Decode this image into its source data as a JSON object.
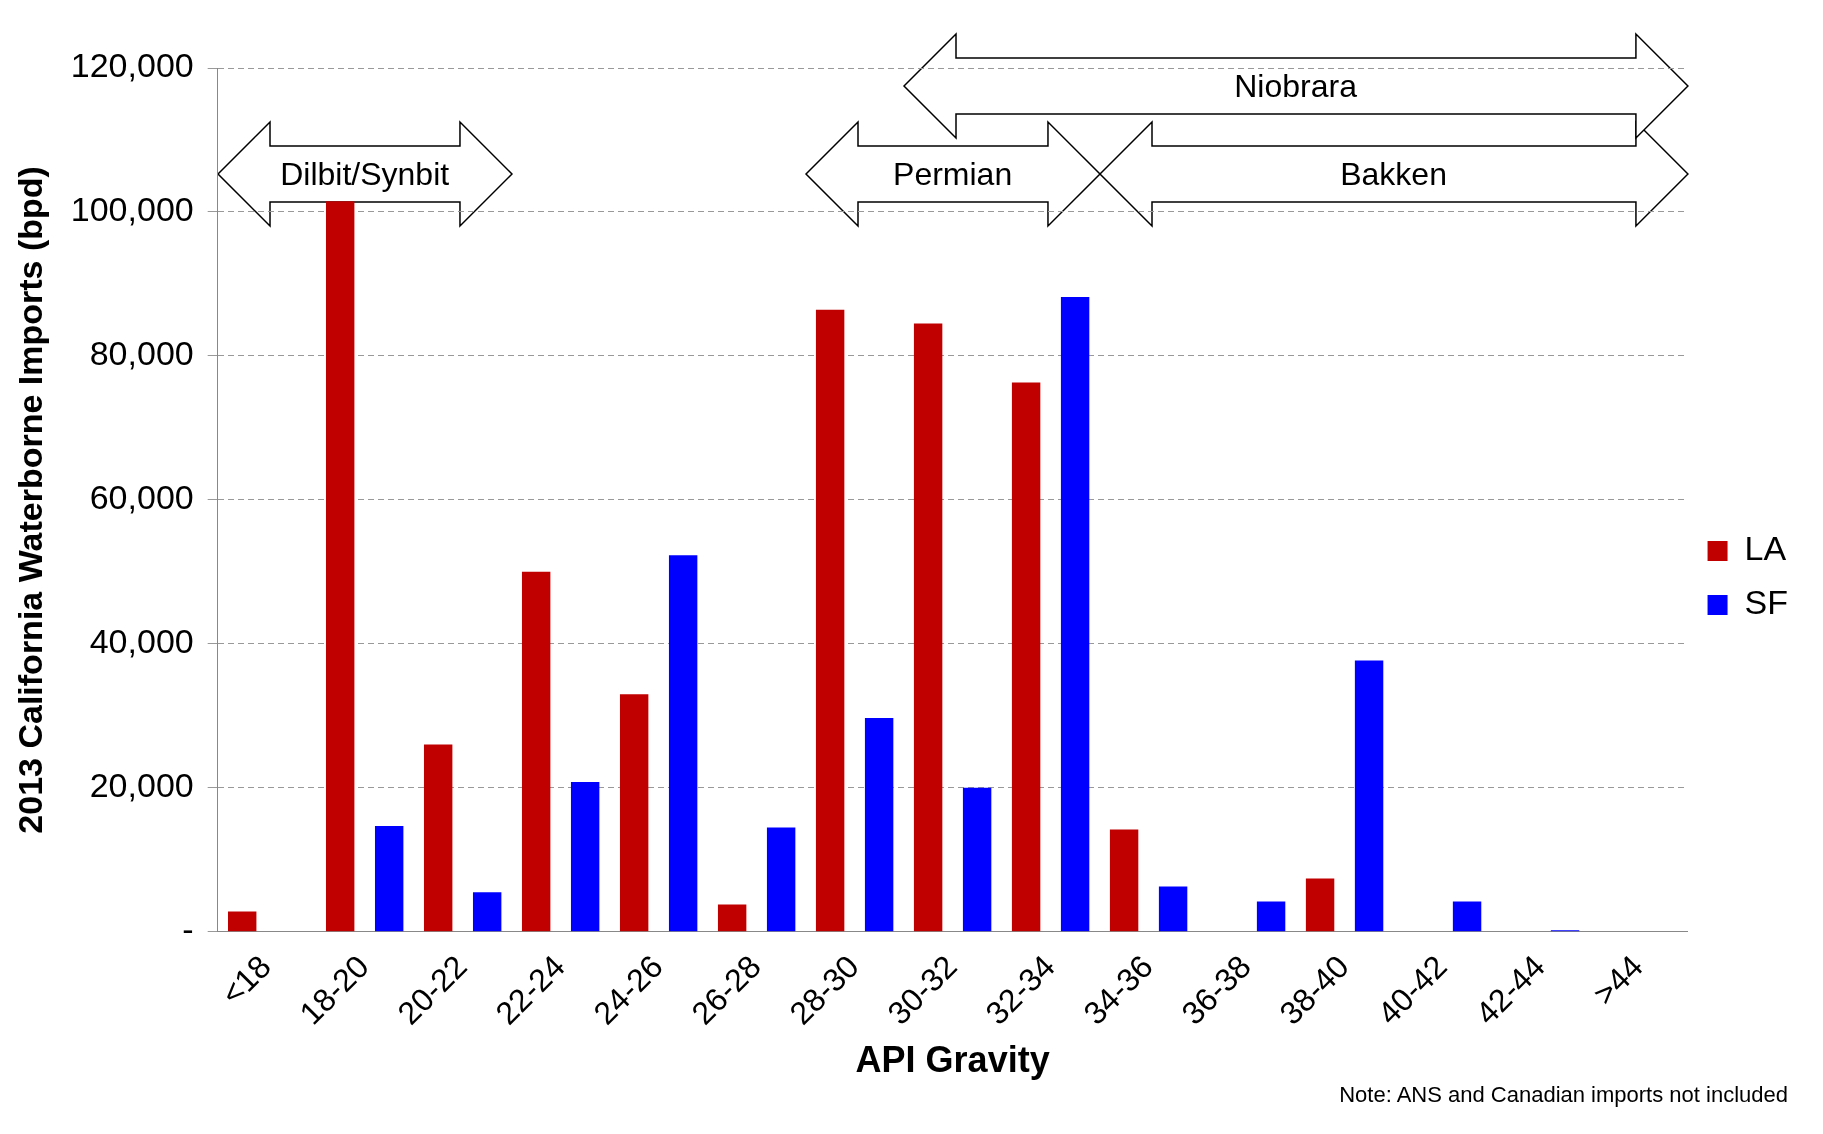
{
  "chart_data": {
    "type": "bar",
    "xlabel": "API Gravity",
    "ylabel": "2013 California Waterborne Imports (bpd)",
    "categories": [
      "<18",
      "18-20",
      "20-22",
      "22-24",
      "24-26",
      "26-28",
      "28-30",
      "30-32",
      "32-34",
      "34-36",
      "36-38",
      "38-40",
      "40-42",
      "42-44",
      ">44"
    ],
    "series": [
      {
        "name": "LA",
        "color": "#c00000",
        "values": [
          2800,
          101500,
          26000,
          50000,
          33000,
          3800,
          86400,
          84500,
          76300,
          14200,
          0,
          7400,
          0,
          0,
          0
        ]
      },
      {
        "name": "SF",
        "color": "#0000ff",
        "values": [
          0,
          14700,
          5500,
          20800,
          52300,
          14500,
          29700,
          20000,
          88200,
          6300,
          4200,
          37700,
          4200,
          200,
          0
        ]
      }
    ],
    "ylim": [
      0,
      120000
    ],
    "yticks": [
      {
        "value": 0,
        "label": "-"
      },
      {
        "value": 20000,
        "label": "20,000"
      },
      {
        "value": 40000,
        "label": "40,000"
      },
      {
        "value": 60000,
        "label": "60,000"
      },
      {
        "value": 80000,
        "label": "80,000"
      },
      {
        "value": 100000,
        "label": "100,000"
      },
      {
        "value": 120000,
        "label": "120,000"
      }
    ],
    "grid": "y",
    "legend": "right",
    "annotations": [
      "Dilbit/Synbit",
      "Permian",
      "Bakken",
      "Niobrara",
      "Note: ANS and Canadian imports not included"
    ]
  }
}
